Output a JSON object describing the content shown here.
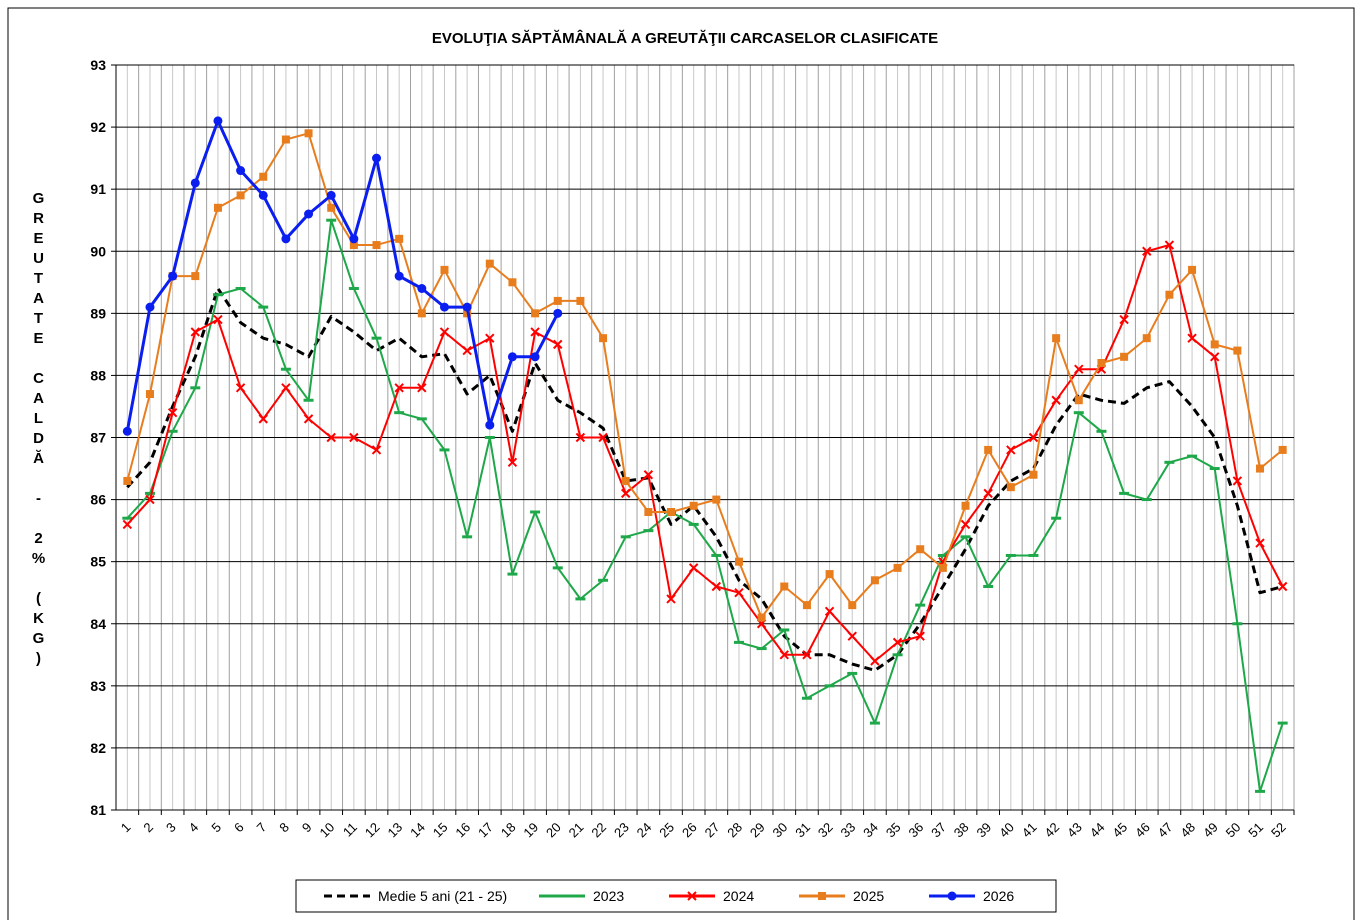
{
  "chart_data": {
    "type": "line",
    "title": "EVOLUŢIA  SĂPTĂMÂNALĂ  A GREUTĂŢII  CARCASELOR  CLASIFICATE",
    "y_label": "GREUTATE CALDĂ - 2% (KG)",
    "categories": [
      "1",
      "2",
      "3",
      "4",
      "5",
      "6",
      "7",
      "8",
      "9",
      "10",
      "11",
      "12",
      "13",
      "14",
      "15",
      "16",
      "17",
      "18",
      "19",
      "20",
      "21",
      "22",
      "23",
      "24",
      "25",
      "26",
      "27",
      "28",
      "29",
      "30",
      "31",
      "32",
      "33",
      "34",
      "35",
      "36",
      "37",
      "38",
      "39",
      "40",
      "41",
      "42",
      "43",
      "44",
      "45",
      "46",
      "47",
      "48",
      "49",
      "50",
      "51",
      "52"
    ],
    "ylim": [
      81,
      93
    ],
    "yticks": [
      81,
      82,
      83,
      84,
      85,
      86,
      87,
      88,
      89,
      90,
      91,
      92,
      93
    ],
    "grid": true,
    "legend": "bottom",
    "series": [
      {
        "name": "Medie 5 ani (21 - 25)",
        "color": "#000000",
        "marker": "none",
        "dashed": true,
        "values": [
          86.2,
          86.6,
          87.5,
          88.3,
          89.4,
          88.85,
          88.6,
          88.5,
          88.3,
          88.95,
          88.7,
          88.4,
          88.6,
          88.3,
          88.35,
          87.7,
          88.0,
          87.1,
          88.2,
          87.6,
          87.4,
          87.15,
          86.3,
          86.35,
          85.6,
          85.9,
          85.4,
          84.7,
          84.4,
          83.8,
          83.5,
          83.5,
          83.35,
          83.25,
          83.5,
          84.0,
          84.6,
          85.2,
          85.9,
          86.3,
          86.5,
          87.2,
          87.7,
          87.6,
          87.55,
          87.8,
          87.9,
          87.5,
          87.0,
          85.9,
          84.5,
          84.6
        ]
      },
      {
        "name": "2023",
        "color": "#1ea84a",
        "marker": "dash",
        "dashed": false,
        "values": [
          85.7,
          86.1,
          87.1,
          87.8,
          89.3,
          89.4,
          89.1,
          88.1,
          87.6,
          90.5,
          89.4,
          88.6,
          87.4,
          87.3,
          86.8,
          85.4,
          87.0,
          84.8,
          85.8,
          84.9,
          84.4,
          84.7,
          85.4,
          85.5,
          85.8,
          85.6,
          85.1,
          83.7,
          83.6,
          83.9,
          82.8,
          83.0,
          83.2,
          82.4,
          83.5,
          84.3,
          85.1,
          85.4,
          84.6,
          85.1,
          85.1,
          85.7,
          87.4,
          87.1,
          86.1,
          86.0,
          86.6,
          86.7,
          86.5,
          84.0,
          81.3,
          82.4
        ]
      },
      {
        "name": "2024",
        "color": "#ff0000",
        "marker": "x",
        "dashed": false,
        "values": [
          85.6,
          86.0,
          87.4,
          88.7,
          88.9,
          87.8,
          87.3,
          87.8,
          87.3,
          87.0,
          87.0,
          86.8,
          87.8,
          87.8,
          88.7,
          88.4,
          88.6,
          86.6,
          88.7,
          88.5,
          87.0,
          87.0,
          86.1,
          86.4,
          84.4,
          84.9,
          84.6,
          84.5,
          84.0,
          83.5,
          83.5,
          84.2,
          83.8,
          83.4,
          83.7,
          83.8,
          85.0,
          85.6,
          86.1,
          86.8,
          87.0,
          87.6,
          88.1,
          88.1,
          88.9,
          90.0,
          90.1,
          88.6,
          88.3,
          86.3,
          85.3,
          84.6
        ]
      },
      {
        "name": "2025",
        "color": "#e87d1e",
        "marker": "square",
        "dashed": false,
        "values": [
          86.3,
          87.7,
          89.6,
          89.6,
          90.7,
          90.9,
          91.2,
          91.8,
          91.9,
          90.7,
          90.1,
          90.1,
          90.2,
          89.0,
          89.7,
          89.0,
          89.8,
          89.5,
          89.0,
          89.2,
          89.2,
          88.6,
          86.3,
          85.8,
          85.8,
          85.9,
          86.0,
          85.0,
          84.1,
          84.6,
          84.3,
          84.8,
          84.3,
          84.7,
          84.9,
          85.2,
          84.9,
          85.9,
          86.8,
          86.2,
          86.4,
          88.6,
          87.6,
          88.2,
          88.3,
          88.6,
          89.3,
          89.7,
          88.5,
          88.4,
          86.5,
          86.8
        ]
      },
      {
        "name": "2026",
        "color": "#0a1ef0",
        "marker": "circle",
        "dashed": false,
        "values": [
          87.1,
          89.1,
          89.6,
          91.1,
          92.1,
          91.3,
          90.9,
          90.2,
          90.6,
          90.9,
          90.2,
          91.5,
          89.6,
          89.4,
          89.1,
          89.1,
          87.2,
          88.3,
          88.3,
          89.0,
          null,
          null,
          null,
          null,
          null,
          null,
          null,
          null,
          null,
          null,
          null,
          null,
          null,
          null,
          null,
          null,
          null,
          null,
          null,
          null,
          null,
          null,
          null,
          null,
          null,
          null,
          null,
          null,
          null,
          null,
          null,
          null
        ]
      }
    ]
  }
}
